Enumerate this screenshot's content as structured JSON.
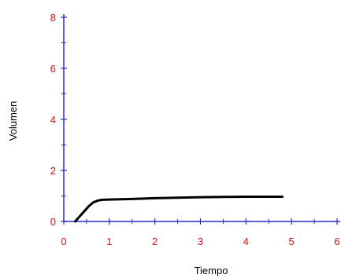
{
  "chart_data": {
    "type": "line",
    "title": "",
    "xlabel": "Tiempo",
    "ylabel": "Volumen",
    "xlim": [
      0,
      6
    ],
    "ylim": [
      0,
      8
    ],
    "x_ticks": [
      "0",
      "1",
      "2",
      "3",
      "4",
      "5",
      "6"
    ],
    "y_ticks": [
      "0",
      "2",
      "4",
      "6",
      "8"
    ],
    "grid": false,
    "legend": "none",
    "series": [
      {
        "x": [
          0.25,
          0.35,
          0.45,
          0.55,
          0.65,
          0.75,
          0.85,
          1.0,
          1.5,
          2.0,
          2.5,
          3.0,
          3.5,
          4.0,
          4.5,
          4.8
        ],
        "y": [
          0.0,
          0.2,
          0.4,
          0.6,
          0.75,
          0.82,
          0.85,
          0.86,
          0.88,
          0.91,
          0.93,
          0.95,
          0.96,
          0.97,
          0.97,
          0.97
        ],
        "color": "#000000"
      }
    ],
    "colors": {
      "axis": "#2a2ad0",
      "tick_labels": "#cc1111",
      "axis_titles": "#000000",
      "line": "#000000"
    }
  }
}
